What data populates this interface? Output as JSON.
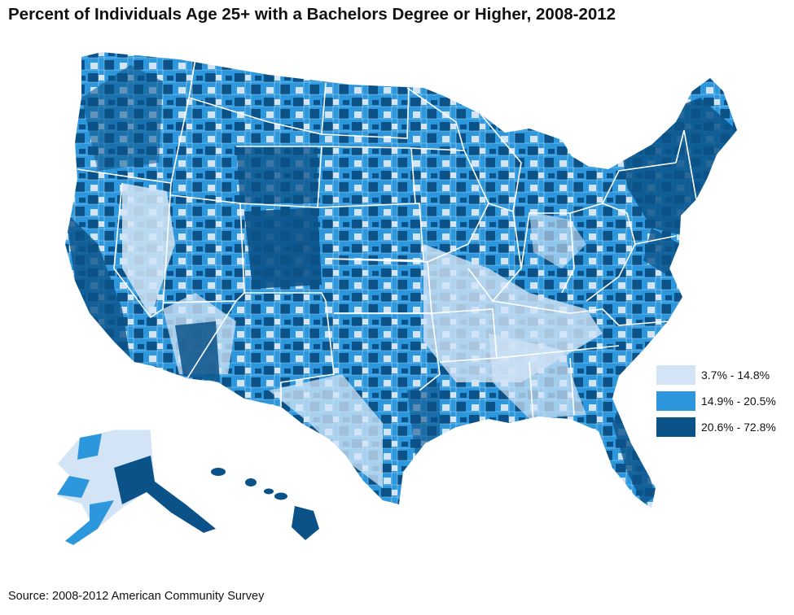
{
  "title": "Percent of Individuals Age 25+ with a Bachelors Degree or Higher, 2008-2012",
  "source": "Source: 2008-2012 American Community Survey",
  "legend": [
    {
      "label": "3.7% - 14.8%",
      "color": "#d2e4f5"
    },
    {
      "label": "14.9% - 20.5%",
      "color": "#2c97dc"
    },
    {
      "label": "20.6% - 72.8%",
      "color": "#0b5288"
    }
  ],
  "map": {
    "type": "choropleth",
    "geography": "US counties",
    "regions_shown": [
      "contiguous United States",
      "Alaska",
      "Hawaii"
    ],
    "border_color": "#ffffff",
    "bins": [
      "3.7% - 14.8%",
      "14.9% - 20.5%",
      "20.6% - 72.8%"
    ]
  }
}
